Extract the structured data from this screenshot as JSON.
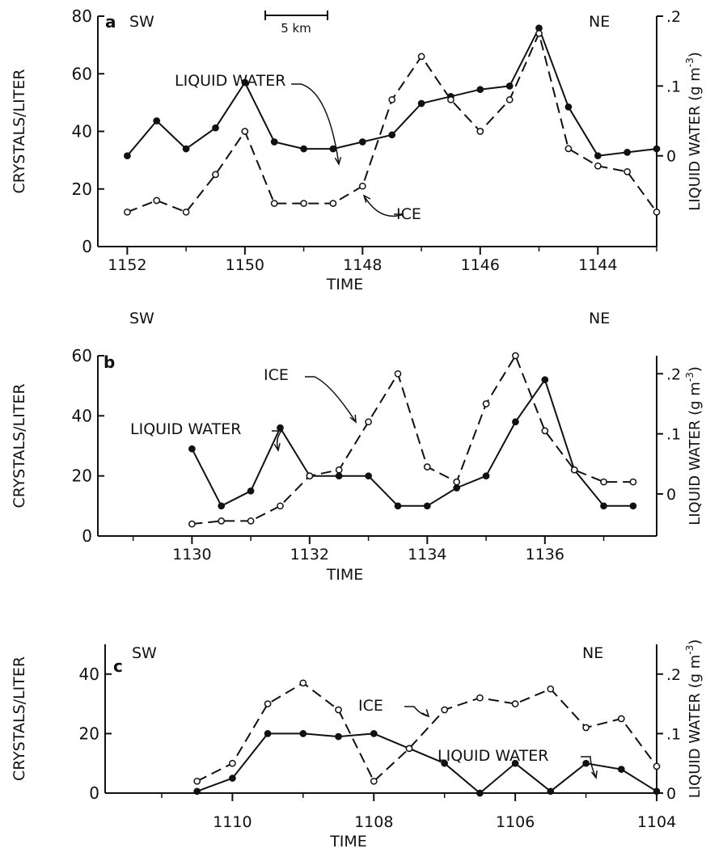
{
  "figure": {
    "scale_bar_label": "5 km"
  },
  "chart_data": [
    {
      "type": "line",
      "panel": "a",
      "left_direction": "SW",
      "right_direction": "NE",
      "xlabel": "TIME",
      "ylabel": "CRYSTALS/LITER",
      "y2label": "LIQUID WATER (g m",
      "y2label_sup": "-3",
      "xlim": [
        1152.5,
        1143.0
      ],
      "ylim": [
        0,
        80
      ],
      "y2lim": [
        -0.13,
        0.2
      ],
      "xticks": [
        "1152",
        "1150",
        "1148",
        "1146",
        "1144"
      ],
      "yticks": [
        "0",
        "20",
        "40",
        "60",
        "80"
      ],
      "y2ticks": [
        "0",
        ".1",
        ".2"
      ],
      "series": [
        {
          "name": "LIQUID WATER",
          "axis": "right",
          "style": "solid",
          "x": [
            1152,
            1151.5,
            1151,
            1150.5,
            1150,
            1149.5,
            1149,
            1148.5,
            1148,
            1147.5,
            1147,
            1146.5,
            1146,
            1145.5,
            1145,
            1144.5,
            1144,
            1143.5,
            1143
          ],
          "values": [
            0.0,
            0.05,
            0.01,
            0.04,
            0.105,
            0.02,
            0.01,
            0.01,
            0.02,
            0.03,
            0.075,
            0.085,
            0.095,
            0.1,
            0.183,
            0.07,
            0.0,
            0.005,
            0.01
          ]
        },
        {
          "name": "ICE",
          "axis": "left",
          "style": "dashed",
          "x": [
            1152,
            1151.5,
            1151,
            1150.5,
            1150,
            1149.5,
            1149,
            1148.5,
            1148,
            1147.5,
            1147,
            1146.5,
            1146,
            1145.5,
            1145,
            1144.5,
            1144,
            1143.5,
            1143
          ],
          "values": [
            12,
            16,
            12,
            25,
            40,
            15,
            15,
            15,
            21,
            51,
            66,
            51,
            40,
            51,
            74,
            34,
            28,
            26,
            12
          ]
        }
      ]
    },
    {
      "type": "line",
      "panel": "b",
      "left_direction": "SW",
      "right_direction": "NE",
      "xlabel": "TIME",
      "ylabel": "CRYSTALS/LITER",
      "y2label": "LIQUID WATER (g m",
      "y2label_sup": "-3",
      "xlim": [
        1128.4,
        1137.9
      ],
      "ylim": [
        0,
        60
      ],
      "y2lim": [
        -0.07,
        0.23
      ],
      "xticks": [
        "1130",
        "1132",
        "1134",
        "1136"
      ],
      "yticks": [
        "0",
        "20",
        "40",
        "60"
      ],
      "y2ticks": [
        "0",
        ".1",
        ".2"
      ],
      "series": [
        {
          "name": "LIQUID WATER",
          "axis": "right",
          "style": "solid",
          "x": [
            1130,
            1130.5,
            1131,
            1131.5,
            1132,
            1132.5,
            1133,
            1133.5,
            1134,
            1134.5,
            1135,
            1135.5,
            1136,
            1136.5,
            1137,
            1137.5
          ],
          "values": [
            0.075,
            -0.02,
            0.005,
            0.11,
            0.03,
            0.03,
            0.03,
            -0.02,
            -0.02,
            0.01,
            0.03,
            0.12,
            0.19,
            0.04,
            -0.02,
            -0.02
          ]
        },
        {
          "name": "ICE",
          "axis": "left",
          "style": "dashed",
          "x": [
            1130,
            1130.5,
            1131,
            1131.5,
            1132,
            1132.5,
            1133,
            1133.5,
            1134,
            1134.5,
            1135,
            1135.5,
            1136,
            1136.5,
            1137,
            1137.5
          ],
          "values": [
            4,
            5,
            5,
            10,
            20,
            22,
            38,
            54,
            23,
            18,
            44,
            60,
            35,
            22,
            18,
            18
          ]
        }
      ]
    },
    {
      "type": "line",
      "panel": "c",
      "left_direction": "SW",
      "right_direction": "NE",
      "xlabel": "TIME",
      "ylabel": "CRYSTALS/LITER",
      "y2label": "LIQUID WATER (g m",
      "y2label_sup": "-3",
      "xlim": [
        1111.8,
        1104.0
      ],
      "ylim": [
        0,
        50
      ],
      "y2lim": [
        0,
        0.25
      ],
      "xticks": [
        "1110",
        "1108",
        "1106",
        "1104"
      ],
      "yticks": [
        "0",
        "20",
        "40"
      ],
      "y2ticks": [
        "0",
        ".1",
        ".2"
      ],
      "series": [
        {
          "name": "LIQUID WATER",
          "axis": "right",
          "style": "solid",
          "x": [
            1110.5,
            1110,
            1109.5,
            1109,
            1108.5,
            1108,
            1107.5,
            1107,
            1106.5,
            1106,
            1105.5,
            1105,
            1104.5,
            1104
          ],
          "values": [
            0.003,
            0.025,
            0.1,
            0.1,
            0.095,
            0.1,
            0.075,
            0.05,
            0.0,
            0.05,
            0.003,
            0.05,
            0.04,
            0.003
          ]
        },
        {
          "name": "ICE",
          "axis": "left",
          "style": "dashed",
          "x": [
            1110.5,
            1110,
            1109.5,
            1109,
            1108.5,
            1108,
            1107.5,
            1107,
            1106.5,
            1106,
            1105.5,
            1105,
            1104.5,
            1104
          ],
          "values": [
            4,
            10,
            30,
            37,
            28,
            4,
            15,
            28,
            32,
            30,
            35,
            22,
            25,
            9
          ]
        }
      ]
    }
  ]
}
